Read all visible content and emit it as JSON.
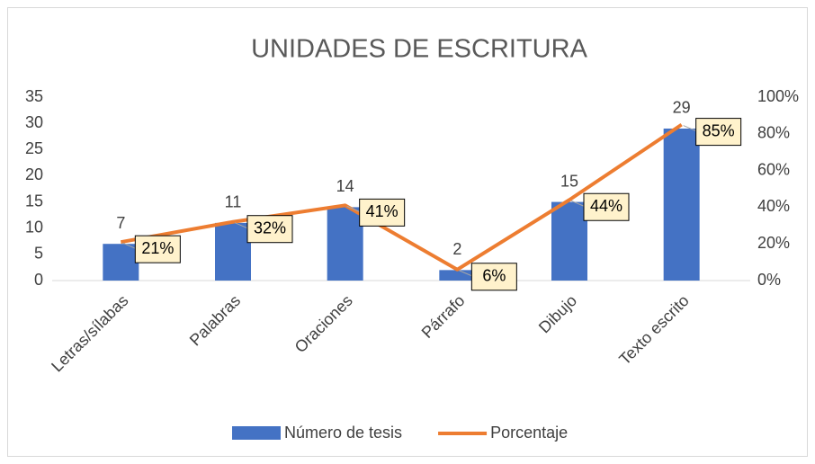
{
  "chart_data": {
    "type": "bar",
    "title": "UNIDADES DE ESCRITURA",
    "categories": [
      "Letras/sílabas",
      "Palabras",
      "Oraciones",
      "Párrafo",
      "Dibujo",
      "Texto escrito"
    ],
    "series": [
      {
        "name": "Número de tesis",
        "type": "bar",
        "color": "#4472c4",
        "values": [
          7,
          11,
          14,
          2,
          15,
          29
        ]
      },
      {
        "name": "Porcentaje",
        "type": "line",
        "axis": "y2",
        "color": "#ed7d31",
        "values": [
          21,
          32,
          41,
          6,
          44,
          85
        ],
        "value_labels": [
          "21%",
          "32%",
          "41%",
          "6%",
          "44%",
          "85%"
        ]
      }
    ],
    "ylim": [
      0,
      35
    ],
    "yticks": [
      0,
      5,
      10,
      15,
      20,
      25,
      30,
      35
    ],
    "y2lim": [
      0,
      100
    ],
    "y2ticks": [
      {
        "value": 0,
        "label": "0%"
      },
      {
        "value": 20,
        "label": "20%"
      },
      {
        "value": 40,
        "label": "40%"
      },
      {
        "value": 60,
        "label": "60%"
      },
      {
        "value": 80,
        "label": "80%"
      },
      {
        "value": 100,
        "label": "100%"
      }
    ],
    "grid": false,
    "legend": "bottom"
  }
}
